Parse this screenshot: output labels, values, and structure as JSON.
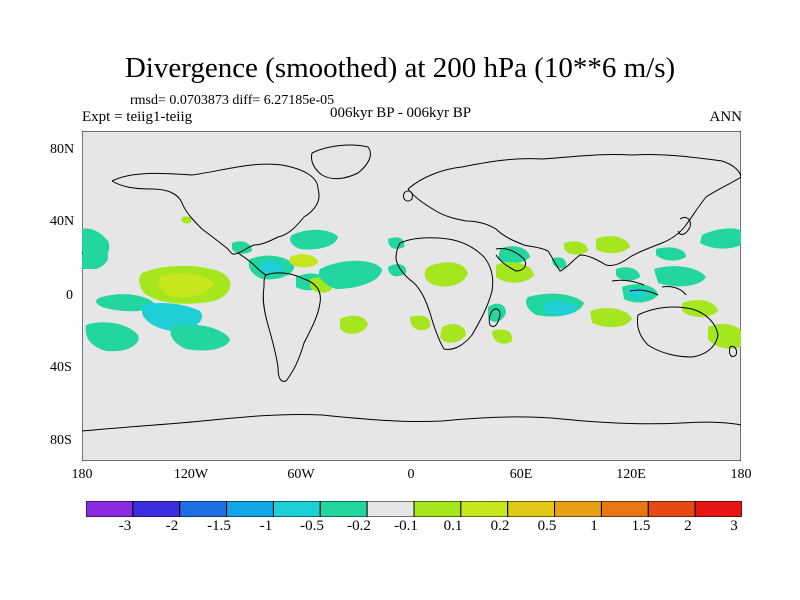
{
  "title": "Divergence (smoothed) at 200 hPa (10**6 m/s)",
  "stats_line": "rmsd= 0.0703873 diff= 6.27185e-05",
  "experiment_line": "Expt = teiig1-teiig",
  "period_line": "006kyr BP - 006kyr BP",
  "season": "ANN",
  "map": {
    "projection": "cylindrical-equidistant",
    "background_color": "#e6e6e6",
    "coastline_color": "#000000",
    "lat_ticks": [
      "80N",
      "40N",
      "0",
      "40S",
      "80S"
    ],
    "lon_ticks": [
      "180",
      "120W",
      "60W",
      "0",
      "60E",
      "120E",
      "180"
    ]
  },
  "colorbar": {
    "colors": [
      "#8a2be2",
      "#3a2ee0",
      "#1e6fe6",
      "#12a6e6",
      "#1ecfd6",
      "#23d6a0",
      "#e6e6e6",
      "#a6e61e",
      "#c8e61e",
      "#e0c814",
      "#e6a014",
      "#e67814",
      "#e64a14",
      "#e61414"
    ],
    "labels": [
      "-3",
      "-2",
      "-1.5",
      "-1",
      "-0.5",
      "-0.2",
      "-0.1",
      "0.1",
      "0.2",
      "0.5",
      "1",
      "1.5",
      "2",
      "3"
    ]
  }
}
